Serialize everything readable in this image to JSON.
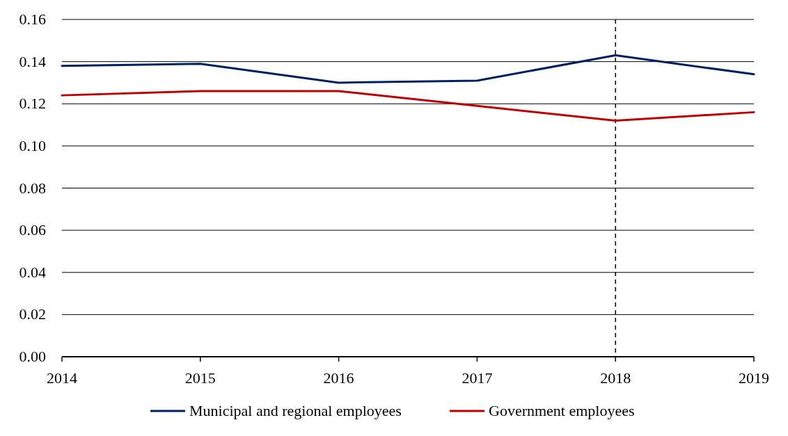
{
  "chart_data": {
    "type": "line",
    "x": [
      2014,
      2015,
      2016,
      2017,
      2018,
      2019
    ],
    "xlim": [
      2014,
      2019
    ],
    "xticks": [
      2014,
      2015,
      2016,
      2017,
      2018,
      2019
    ],
    "ylim": [
      0,
      0.16
    ],
    "yticks": [
      {
        "value": 0,
        "label": "0.00"
      },
      {
        "value": 0.02,
        "label": "0.02"
      },
      {
        "value": 0.04,
        "label": "0.04"
      },
      {
        "value": 0.06,
        "label": "0.06"
      },
      {
        "value": 0.08,
        "label": "0.08"
      },
      {
        "value": 0.1,
        "label": "0.10"
      },
      {
        "value": 0.12,
        "label": "0.12"
      },
      {
        "value": 0.14,
        "label": "0.14"
      },
      {
        "value": 0.16,
        "label": "0.16"
      }
    ],
    "grid": "y",
    "legend": "bottom",
    "marker": "none",
    "line_style": "solid",
    "series": [
      {
        "name": "Municipal and regional employees",
        "color": "#002060",
        "values": [
          0.138,
          0.139,
          0.13,
          0.131,
          0.143,
          0.134
        ]
      },
      {
        "name": "Government employees",
        "color": "#c00000",
        "values": [
          0.124,
          0.126,
          0.126,
          0.119,
          0.112,
          0.116
        ]
      }
    ],
    "ref_lines": [
      {
        "axis": "x",
        "value": 2018,
        "color": "#000000",
        "line_style": "dashed"
      }
    ]
  }
}
